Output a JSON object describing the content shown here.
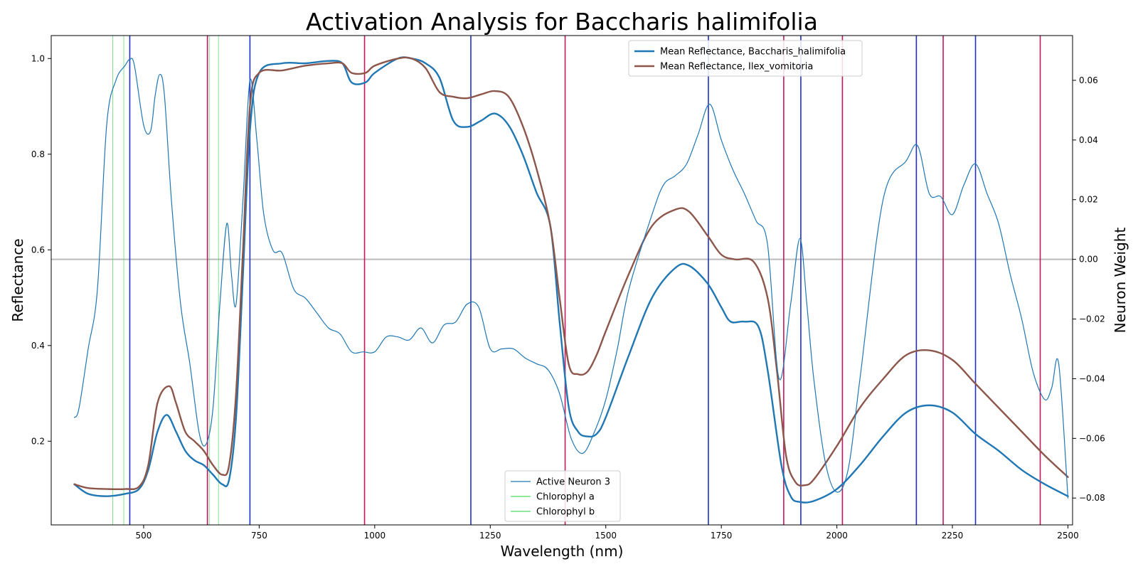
{
  "chart_data": {
    "type": "line",
    "title": "Activation Analysis for Baccharis halimifolia",
    "xlabel": "Wavelength (nm)",
    "ylabel": "Reflectance",
    "y2label": "Neuron Weight",
    "xlim": [
      300,
      2510
    ],
    "ylim": [
      0.025,
      1.048
    ],
    "y2lim": [
      -0.089,
      0.075
    ],
    "xticks": [
      500,
      750,
      1000,
      1250,
      1500,
      1750,
      2000,
      2250,
      2500
    ],
    "yticks": [
      0.2,
      0.4,
      0.6,
      0.8,
      1.0
    ],
    "y2ticks": [
      -0.08,
      -0.06,
      -0.04,
      -0.02,
      0.0,
      0.02,
      0.04,
      0.06
    ],
    "xtick_labels": [
      "500",
      "750",
      "1000",
      "1250",
      "1500",
      "1750",
      "2000",
      "2250",
      "2500"
    ],
    "ytick_labels": [
      "0.2",
      "0.4",
      "0.6",
      "0.8",
      "1.0"
    ],
    "y2tick_labels": [
      "−0.08",
      "−0.06",
      "−0.04",
      "−0.02",
      "0.00",
      "0.02",
      "0.04",
      "0.06"
    ],
    "zero_line": 0.0,
    "series": [
      {
        "name": "Mean Reflectance, Baccharis_halimifolia",
        "axis": "left",
        "color": "#1f77b4",
        "x": [
          350,
          380,
          420,
          460,
          490,
          510,
          530,
          550,
          570,
          590,
          610,
          630,
          650,
          670,
          685,
          700,
          715,
          730,
          750,
          800,
          850,
          900,
          930,
          950,
          980,
          1000,
          1050,
          1080,
          1110,
          1140,
          1170,
          1200,
          1230,
          1260,
          1290,
          1320,
          1350,
          1380,
          1400,
          1420,
          1440,
          1460,
          1480,
          1500,
          1550,
          1600,
          1650,
          1680,
          1720,
          1750,
          1770,
          1800,
          1830,
          1850,
          1880,
          1900,
          1920,
          1950,
          2000,
          2050,
          2100,
          2150,
          2200,
          2250,
          2300,
          2350,
          2400,
          2450,
          2500
        ],
        "y": [
          0.11,
          0.09,
          0.085,
          0.09,
          0.1,
          0.14,
          0.22,
          0.255,
          0.22,
          0.18,
          0.16,
          0.15,
          0.13,
          0.11,
          0.12,
          0.25,
          0.55,
          0.85,
          0.97,
          0.99,
          0.99,
          0.995,
          0.99,
          0.95,
          0.95,
          0.97,
          1.0,
          1.0,
          0.99,
          0.96,
          0.87,
          0.857,
          0.87,
          0.885,
          0.86,
          0.8,
          0.72,
          0.65,
          0.45,
          0.27,
          0.22,
          0.21,
          0.215,
          0.25,
          0.38,
          0.5,
          0.562,
          0.567,
          0.53,
          0.48,
          0.45,
          0.45,
          0.44,
          0.35,
          0.15,
          0.085,
          0.073,
          0.075,
          0.1,
          0.15,
          0.21,
          0.26,
          0.275,
          0.26,
          0.215,
          0.18,
          0.14,
          0.11,
          0.085
        ]
      },
      {
        "name": "Mean Reflectance, Ilex_vomitoria",
        "axis": "left",
        "color": "#8c564b",
        "x": [
          350,
          380,
          420,
          460,
          490,
          510,
          530,
          555,
          570,
          590,
          610,
          630,
          650,
          670,
          685,
          700,
          715,
          730,
          750,
          800,
          850,
          900,
          930,
          950,
          980,
          1000,
          1050,
          1080,
          1110,
          1140,
          1170,
          1200,
          1230,
          1260,
          1290,
          1320,
          1350,
          1380,
          1400,
          1420,
          1440,
          1460,
          1480,
          1500,
          1550,
          1600,
          1650,
          1680,
          1720,
          1750,
          1780,
          1820,
          1850,
          1870,
          1890,
          1910,
          1930,
          1950,
          2000,
          2050,
          2100,
          2150,
          2200,
          2250,
          2300,
          2350,
          2400,
          2450,
          2500
        ],
        "y": [
          0.11,
          0.102,
          0.1,
          0.1,
          0.105,
          0.15,
          0.28,
          0.315,
          0.28,
          0.22,
          0.2,
          0.18,
          0.15,
          0.13,
          0.15,
          0.3,
          0.6,
          0.9,
          0.97,
          0.975,
          0.985,
          0.99,
          0.99,
          0.97,
          0.97,
          0.985,
          1.0,
          1.0,
          0.98,
          0.93,
          0.92,
          0.917,
          0.925,
          0.932,
          0.92,
          0.86,
          0.77,
          0.65,
          0.5,
          0.36,
          0.34,
          0.345,
          0.38,
          0.43,
          0.55,
          0.65,
          0.684,
          0.68,
          0.63,
          0.59,
          0.58,
          0.575,
          0.5,
          0.35,
          0.17,
          0.115,
          0.108,
          0.12,
          0.19,
          0.27,
          0.33,
          0.38,
          0.39,
          0.37,
          0.32,
          0.27,
          0.22,
          0.17,
          0.125
        ]
      },
      {
        "name": "Active Neuron 3",
        "axis": "right",
        "color": "#1f77b4",
        "x": [
          350,
          360,
          380,
          400,
          420,
          440,
          460,
          470,
          480,
          500,
          515,
          525,
          535,
          545,
          560,
          580,
          600,
          620,
          635,
          650,
          665,
          680,
          690,
          700,
          715,
          730,
          745,
          760,
          780,
          800,
          825,
          850,
          875,
          900,
          925,
          950,
          975,
          1000,
          1025,
          1050,
          1075,
          1100,
          1125,
          1150,
          1175,
          1200,
          1225,
          1250,
          1275,
          1300,
          1325,
          1350,
          1375,
          1400,
          1425,
          1450,
          1475,
          1500,
          1525,
          1550,
          1600,
          1625,
          1650,
          1675,
          1700,
          1725,
          1750,
          1775,
          1800,
          1825,
          1850,
          1875,
          1900,
          1920,
          1935,
          1950,
          1975,
          2000,
          2025,
          2050,
          2100,
          2150,
          2175,
          2200,
          2225,
          2250,
          2275,
          2300,
          2325,
          2350,
          2375,
          2400,
          2425,
          2450,
          2465,
          2480,
          2500
        ],
        "y": [
          -0.053,
          -0.05,
          -0.03,
          -0.01,
          0.045,
          0.06,
          0.065,
          0.067,
          0.065,
          0.045,
          0.043,
          0.055,
          0.062,
          0.055,
          0.02,
          -0.015,
          -0.035,
          -0.058,
          -0.062,
          -0.05,
          -0.015,
          0.012,
          -0.005,
          -0.015,
          0.02,
          0.06,
          0.04,
          0.015,
          0.003,
          0.002,
          -0.01,
          -0.013,
          -0.018,
          -0.023,
          -0.025,
          -0.031,
          -0.031,
          -0.031,
          -0.026,
          -0.026,
          -0.027,
          -0.023,
          -0.028,
          -0.022,
          -0.021,
          -0.015,
          -0.016,
          -0.03,
          -0.03,
          -0.03,
          -0.033,
          -0.035,
          -0.037,
          -0.045,
          -0.06,
          -0.065,
          -0.058,
          -0.047,
          -0.03,
          -0.01,
          0.015,
          0.025,
          0.028,
          0.032,
          0.042,
          0.052,
          0.04,
          0.03,
          0.022,
          0.013,
          0.005,
          -0.04,
          -0.015,
          0.007,
          -0.015,
          -0.04,
          -0.068,
          -0.078,
          -0.07,
          -0.04,
          0.02,
          0.033,
          0.038,
          0.022,
          0.021,
          0.015,
          0.025,
          0.032,
          0.022,
          0.012,
          -0.005,
          -0.02,
          -0.038,
          -0.047,
          -0.043,
          -0.035,
          -0.08
        ]
      }
    ],
    "vlines": [
      {
        "x": 433,
        "color": "#4cd964",
        "width": 0.7
      },
      {
        "x": 457,
        "color": "#4cd964",
        "width": 0.7
      },
      {
        "x": 642,
        "color": "#4cd964",
        "width": 0.7
      },
      {
        "x": 662,
        "color": "#4cd964",
        "width": 0.7
      },
      {
        "x": 470,
        "color": "#1f2fc8",
        "width": 1.6
      },
      {
        "x": 730,
        "color": "#1f2fc8",
        "width": 1.6
      },
      {
        "x": 1208,
        "color": "#1f2fc8",
        "width": 1.6
      },
      {
        "x": 1722,
        "color": "#1f2fc8",
        "width": 1.6
      },
      {
        "x": 1922,
        "color": "#1f2fc8",
        "width": 1.6
      },
      {
        "x": 2172,
        "color": "#1f2fc8",
        "width": 1.6
      },
      {
        "x": 2300,
        "color": "#1f2fc8",
        "width": 1.6
      },
      {
        "x": 638,
        "color": "#c2185b",
        "width": 1.6
      },
      {
        "x": 978,
        "color": "#c2185b",
        "width": 1.6
      },
      {
        "x": 1412,
        "color": "#c2185b",
        "width": 1.6
      },
      {
        "x": 1885,
        "color": "#c2185b",
        "width": 1.6
      },
      {
        "x": 2012,
        "color": "#c2185b",
        "width": 1.6
      },
      {
        "x": 2230,
        "color": "#c2185b",
        "width": 1.6
      },
      {
        "x": 2440,
        "color": "#c2185b",
        "width": 1.6
      }
    ],
    "legend_top": {
      "placement": "top-center",
      "entries": [
        {
          "label": "Mean Reflectance, Baccharis_halimifolia",
          "color": "#1f77b4"
        },
        {
          "label": "Mean Reflectance, Ilex_vomitoria",
          "color": "#8c564b"
        }
      ]
    },
    "legend_bottom": {
      "placement": "bottom-center",
      "entries": [
        {
          "label": "Active Neuron 3",
          "color": "#1f77b4"
        },
        {
          "label": "Chlorophyl a",
          "color": "#4cd964"
        },
        {
          "label": "Chlorophyl b",
          "color": "#4cd964"
        }
      ]
    }
  }
}
